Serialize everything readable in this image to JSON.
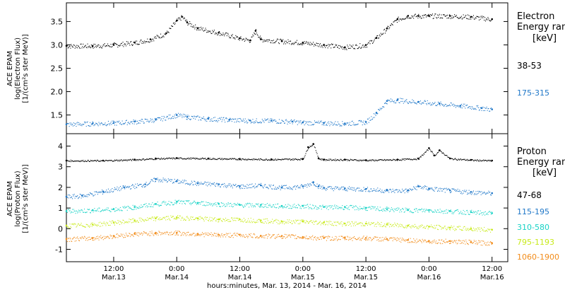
{
  "x_axis": {
    "label": "hours:minutes, Mar. 13, 2014 - Mar. 16, 2014",
    "ticks": [
      {
        "t": 12,
        "time": "12:00",
        "date": "Mar.13"
      },
      {
        "t": 24,
        "time": "0:00",
        "date": "Mar.14"
      },
      {
        "t": 36,
        "time": "12:00",
        "date": "Mar.14"
      },
      {
        "t": 48,
        "time": "0:00",
        "date": "Mar.15"
      },
      {
        "t": 60,
        "time": "12:00",
        "date": "Mar.15"
      },
      {
        "t": 72,
        "time": "0:00",
        "date": "Mar.16"
      },
      {
        "t": 84,
        "time": "12:00",
        "date": "Mar.16"
      }
    ]
  },
  "chart_data": [
    {
      "type": "scatter",
      "panel": "electron",
      "ylabel": [
        "ACE EPAM",
        "log(Electron Flux)",
        "[1/(cm²s ster MeV)]"
      ],
      "ylim": [
        1.1,
        3.9
      ],
      "yticks": [
        "1.5",
        "2.0",
        "2.5",
        "3.0",
        "3.5"
      ],
      "xlim": [
        3,
        87
      ],
      "legend_title": [
        "Electron",
        "Energy ranges",
        "[keV]"
      ],
      "series": [
        {
          "name": "38-53",
          "color": "#000000",
          "x": [
            3,
            8,
            12,
            16,
            19,
            22,
            24,
            25,
            26,
            28,
            32,
            36,
            38,
            39,
            40,
            44,
            48,
            52,
            56,
            60,
            62,
            64,
            66,
            68,
            70,
            72,
            76,
            80,
            84
          ],
          "y": [
            2.98,
            2.98,
            3.0,
            3.05,
            3.12,
            3.25,
            3.52,
            3.6,
            3.48,
            3.36,
            3.26,
            3.14,
            3.1,
            3.3,
            3.12,
            3.08,
            3.05,
            3.0,
            2.95,
            3.0,
            3.15,
            3.35,
            3.55,
            3.62,
            3.62,
            3.62,
            3.62,
            3.6,
            3.55
          ]
        },
        {
          "name": "175-315",
          "color": "#1f77c8",
          "x": [
            3,
            8,
            12,
            16,
            20,
            24,
            26,
            30,
            34,
            38,
            42,
            46,
            48,
            52,
            56,
            60,
            62,
            64,
            66,
            70,
            74,
            78,
            82,
            84
          ],
          "y": [
            1.3,
            1.32,
            1.33,
            1.36,
            1.4,
            1.5,
            1.46,
            1.42,
            1.4,
            1.38,
            1.38,
            1.36,
            1.34,
            1.33,
            1.32,
            1.35,
            1.55,
            1.8,
            1.82,
            1.78,
            1.74,
            1.7,
            1.65,
            1.62
          ]
        }
      ]
    },
    {
      "type": "scatter",
      "panel": "proton",
      "ylabel": [
        "ACE EPAM",
        "log(Proton Flux)",
        "[1/(cm²s ster MeV)]"
      ],
      "ylim": [
        -1.6,
        4.6
      ],
      "yticks": [
        "-1",
        "0",
        "1",
        "2",
        "3",
        "4"
      ],
      "xlim": [
        3,
        87
      ],
      "legend_title": [
        "Proton",
        "Energy ranges",
        "[keV]"
      ],
      "series": [
        {
          "name": "47-68",
          "color": "#000000",
          "x": [
            3,
            10,
            16,
            20,
            24,
            30,
            36,
            42,
            48,
            49,
            50,
            51,
            52,
            56,
            60,
            66,
            70,
            72,
            73,
            74,
            76,
            80,
            84
          ],
          "y": [
            3.3,
            3.3,
            3.35,
            3.4,
            3.42,
            3.4,
            3.38,
            3.36,
            3.38,
            3.95,
            4.1,
            3.4,
            3.35,
            3.35,
            3.32,
            3.35,
            3.4,
            3.9,
            3.55,
            3.8,
            3.4,
            3.33,
            3.3
          ]
        },
        {
          "name": "115-195",
          "color": "#1f77c8",
          "x": [
            3,
            6,
            10,
            14,
            18,
            20,
            24,
            28,
            32,
            36,
            40,
            44,
            48,
            50,
            51,
            52,
            56,
            60,
            64,
            68,
            70,
            72,
            76,
            80,
            84
          ],
          "y": [
            1.55,
            1.6,
            1.8,
            2.0,
            2.15,
            2.4,
            2.3,
            2.2,
            2.15,
            2.05,
            2.1,
            2.0,
            2.05,
            2.25,
            2.05,
            1.98,
            1.95,
            1.92,
            1.85,
            1.85,
            2.05,
            1.95,
            1.85,
            1.78,
            1.72
          ]
        },
        {
          "name": "310-580",
          "color": "#19d3c6",
          "x": [
            3,
            8,
            12,
            16,
            20,
            24,
            28,
            32,
            36,
            40,
            44,
            48,
            52,
            56,
            60,
            64,
            68,
            72,
            76,
            80,
            84
          ],
          "y": [
            0.85,
            0.9,
            0.95,
            1.05,
            1.2,
            1.3,
            1.25,
            1.2,
            1.15,
            1.15,
            1.1,
            1.1,
            1.05,
            1.05,
            1.0,
            0.95,
            0.9,
            0.9,
            0.85,
            0.8,
            0.75
          ]
        },
        {
          "name": "795-1193",
          "color": "#c8ea1a",
          "x": [
            3,
            8,
            12,
            16,
            20,
            24,
            28,
            32,
            36,
            40,
            44,
            48,
            52,
            56,
            60,
            64,
            68,
            72,
            76,
            80,
            84
          ],
          "y": [
            0.15,
            0.2,
            0.3,
            0.4,
            0.5,
            0.55,
            0.5,
            0.45,
            0.45,
            0.4,
            0.35,
            0.35,
            0.3,
            0.25,
            0.25,
            0.2,
            0.15,
            0.1,
            0.05,
            0.0,
            -0.05
          ]
        },
        {
          "name": "1060-1900",
          "color": "#f28c1a",
          "x": [
            3,
            8,
            12,
            16,
            20,
            24,
            28,
            32,
            36,
            40,
            44,
            48,
            52,
            56,
            60,
            64,
            68,
            72,
            76,
            80,
            84
          ],
          "y": [
            -0.5,
            -0.45,
            -0.35,
            -0.25,
            -0.2,
            -0.2,
            -0.25,
            -0.3,
            -0.3,
            -0.35,
            -0.35,
            -0.4,
            -0.45,
            -0.45,
            -0.45,
            -0.5,
            -0.55,
            -0.6,
            -0.6,
            -0.65,
            -0.7
          ]
        }
      ]
    }
  ]
}
